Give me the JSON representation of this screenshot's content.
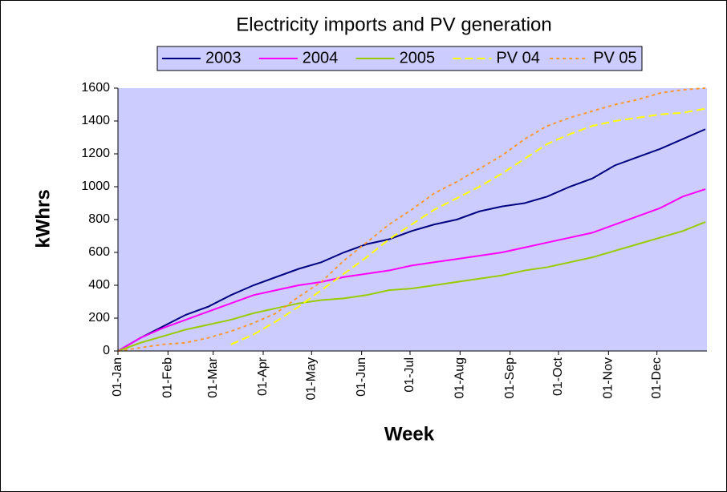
{
  "chart_data": {
    "type": "line",
    "title": "Electricity imports and PV generation",
    "x_label": "Week",
    "y_label": "kWhrs",
    "x": [
      0,
      14,
      28,
      42,
      56,
      70,
      84,
      98,
      112,
      126,
      140,
      154,
      168,
      182,
      196,
      210,
      224,
      238,
      252,
      266,
      280,
      294,
      308,
      322,
      336,
      350,
      364
    ],
    "xlim": [
      0,
      365
    ],
    "xticks": [
      {
        "value": 0,
        "label": "01-Jan"
      },
      {
        "value": 31,
        "label": "01-Feb"
      },
      {
        "value": 59,
        "label": "01-Mar"
      },
      {
        "value": 90,
        "label": "01-Apr"
      },
      {
        "value": 120,
        "label": "01-May"
      },
      {
        "value": 151,
        "label": "01-Jun"
      },
      {
        "value": 181,
        "label": "01-Jul"
      },
      {
        "value": 212,
        "label": "01-Aug"
      },
      {
        "value": 243,
        "label": "01-Sep"
      },
      {
        "value": 273,
        "label": "01-Oct"
      },
      {
        "value": 304,
        "label": "01-Nov"
      },
      {
        "value": 334,
        "label": "01-Dec"
      }
    ],
    "ylim": [
      0,
      1600
    ],
    "yticks": [
      0,
      200,
      400,
      600,
      800,
      1000,
      1200,
      1400,
      1600
    ],
    "legend": "top",
    "plot_background": "#ccccff",
    "series": [
      {
        "name": "2003",
        "color": "#000080",
        "style": "solid",
        "values": [
          0,
          80,
          150,
          220,
          270,
          340,
          400,
          450,
          500,
          540,
          600,
          650,
          680,
          730,
          770,
          800,
          850,
          880,
          900,
          940,
          1000,
          1050,
          1130,
          1180,
          1230,
          1290,
          1350
        ]
      },
      {
        "name": "2004",
        "color": "#ff00ff",
        "style": "solid",
        "values": [
          0,
          80,
          140,
          190,
          240,
          290,
          340,
          370,
          400,
          420,
          450,
          470,
          490,
          520,
          540,
          560,
          580,
          600,
          630,
          660,
          690,
          720,
          770,
          820,
          870,
          940,
          985
        ]
      },
      {
        "name": "2005",
        "color": "#99cc00",
        "style": "solid",
        "values": [
          0,
          50,
          90,
          130,
          160,
          190,
          230,
          260,
          290,
          310,
          320,
          340,
          370,
          380,
          400,
          420,
          440,
          460,
          490,
          510,
          540,
          570,
          610,
          650,
          690,
          730,
          785
        ]
      },
      {
        "name": "PV 04",
        "color": "#ffff00",
        "style": "dashed",
        "values": [
          null,
          null,
          null,
          null,
          null,
          40,
          100,
          180,
          270,
          370,
          470,
          570,
          680,
          770,
          860,
          930,
          1000,
          1080,
          1170,
          1260,
          1320,
          1370,
          1400,
          1420,
          1440,
          1450,
          1475
        ]
      },
      {
        "name": "PV 05",
        "color": "#ff9933",
        "style": "dotted",
        "values": [
          0,
          20,
          40,
          50,
          80,
          120,
          170,
          230,
          330,
          420,
          550,
          660,
          770,
          860,
          960,
          1030,
          1110,
          1190,
          1290,
          1370,
          1420,
          1460,
          1500,
          1530,
          1570,
          1590,
          1600
        ]
      }
    ]
  }
}
